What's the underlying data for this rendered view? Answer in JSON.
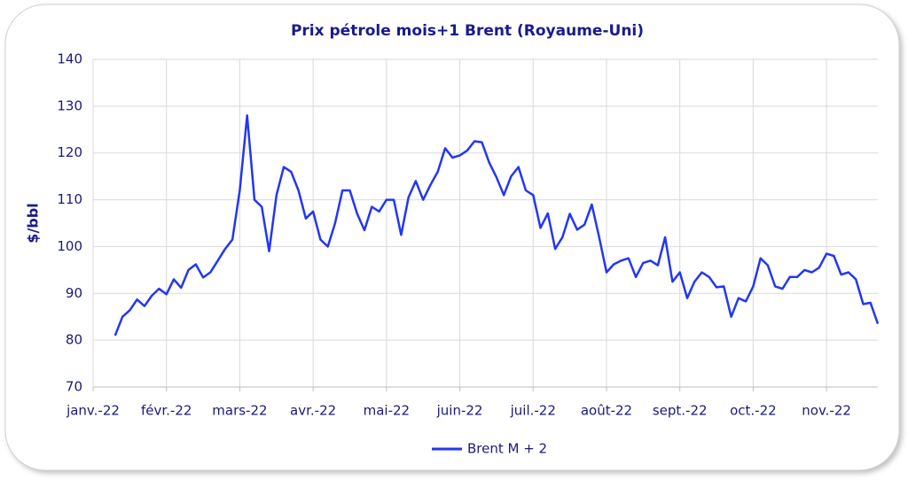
{
  "chart_data": {
    "type": "line",
    "title": "Prix pétrole mois+1 Brent (Royaume-Uni)",
    "y_label": "$/bbl",
    "categories": [
      "janv.-22",
      null,
      null,
      null,
      null,
      null,
      null,
      null,
      null,
      null,
      "févr.-22",
      null,
      null,
      null,
      null,
      null,
      null,
      null,
      null,
      null,
      "mars-22",
      null,
      null,
      null,
      null,
      null,
      null,
      null,
      null,
      null,
      "avr.-22",
      null,
      null,
      null,
      null,
      null,
      null,
      null,
      null,
      null,
      "mai-22",
      null,
      null,
      null,
      null,
      null,
      null,
      null,
      null,
      null,
      "juin-22",
      null,
      null,
      null,
      null,
      null,
      null,
      null,
      null,
      null,
      "juil.-22",
      null,
      null,
      null,
      null,
      null,
      null,
      null,
      null,
      null,
      "août-22",
      null,
      null,
      null,
      null,
      null,
      null,
      null,
      null,
      null,
      "sept.-22",
      null,
      null,
      null,
      null,
      null,
      null,
      null,
      null,
      null,
      "oct.-22",
      null,
      null,
      null,
      null,
      null,
      null,
      null,
      null,
      null,
      "nov.-22",
      null,
      null,
      null,
      null,
      null,
      null,
      null
    ],
    "series": [
      {
        "name": "Brent M + 2",
        "color": "#2336f5",
        "values": [
          null,
          null,
          null,
          81,
          85,
          86.4,
          88.7,
          87.3,
          89.5,
          91,
          89.8,
          93,
          91.2,
          95,
          96.2,
          93.4,
          94.5,
          97,
          99.5,
          101.5,
          112,
          128,
          110,
          108.5,
          99,
          111,
          117,
          116,
          112,
          106,
          107.5,
          101.5,
          100,
          105,
          112,
          112,
          107,
          103.5,
          108.5,
          107.5,
          110,
          110,
          102.5,
          110.5,
          114,
          110,
          113.2,
          116,
          121,
          119,
          119.5,
          120.5,
          122.5,
          122.3,
          118,
          114.8,
          111,
          115,
          117,
          112,
          111,
          104,
          107.1,
          99.5,
          102,
          107,
          103.6,
          104.7,
          109,
          102,
          94.5,
          96.2,
          97,
          97.5,
          93.5,
          96.5,
          97,
          96,
          102,
          92.5,
          94.5,
          89,
          92.5,
          94.5,
          93.5,
          91.3,
          91.5,
          85,
          89,
          88.3,
          91.5,
          97.5,
          96,
          91.5,
          91,
          93.5,
          93.5,
          95,
          94.5,
          95.5,
          98.5,
          98,
          94,
          94.5,
          93,
          87.7,
          88,
          83.5
        ]
      }
    ],
    "ylim": [
      70,
      140
    ],
    "yticks": [
      70,
      80,
      90,
      100,
      110,
      120,
      130,
      140
    ],
    "grid": true,
    "legend": "bottom"
  }
}
